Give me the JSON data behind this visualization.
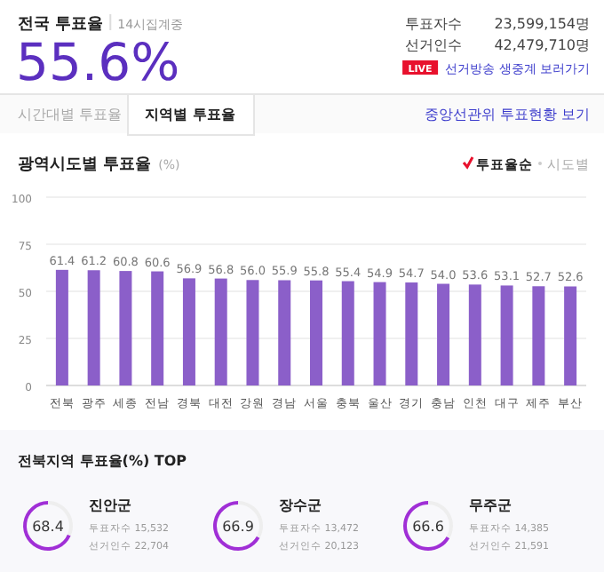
{
  "chart_data": [
    {
      "type": "other",
      "title": "전국 투표율",
      "subtitle": "14시집계중",
      "annotations": [
        "55.6%",
        "투표자수",
        "23,599,154명",
        "선거인수",
        "42,479,710명",
        "LIVE",
        "선거방송 생중계 보러가기",
        "시간대별 투표율",
        "지역별 투표율",
        "중앙선관위 투표현황 보기"
      ]
    },
    {
      "type": "bar",
      "title": "광역시도별 투표율",
      "subtitle": "(%)",
      "annotations": [
        "투표율순",
        "시도별"
      ],
      "categories": [
        "전북",
        "광주",
        "세종",
        "전남",
        "경북",
        "대전",
        "강원",
        "경남",
        "서울",
        "충북",
        "울산",
        "경기",
        "충남",
        "인천",
        "대구",
        "제주",
        "부산"
      ],
      "values": [
        61.4,
        61.2,
        60.8,
        60.6,
        56.9,
        56.8,
        56.0,
        55.9,
        55.8,
        55.4,
        54.9,
        54.7,
        54.0,
        53.6,
        53.1,
        52.7,
        52.6
      ],
      "color": "#8b5fc9",
      "ylim": [
        0,
        100
      ],
      "yticks": [
        0,
        25,
        50,
        75,
        100
      ],
      "grid": "y",
      "value_labels": [
        "61.4",
        "61.2",
        "60.8",
        "60.6",
        "56.9",
        "56.8",
        "56.0",
        "55.9",
        "55.8",
        "55.4",
        "54.9",
        "54.7",
        "54.0",
        "53.6",
        "53.1",
        "52.7",
        "52.6"
      ]
    },
    {
      "type": "other",
      "title": "전북지역 투표율(%) TOP"
    },
    {
      "type": "donut",
      "title": "진안군",
      "annotations": [
        "투표자수 15,532",
        "선거인수 22,704"
      ],
      "categories": [
        null,
        null
      ],
      "values": [
        68.4,
        31.6
      ],
      "colors": [
        "#a02fd6",
        "#eeeeee"
      ],
      "value_labels": [
        "68.4",
        null
      ]
    },
    {
      "type": "donut",
      "title": "장수군",
      "annotations": [
        "투표자수 13,472",
        "선거인수 20,123"
      ],
      "categories": [
        null,
        null
      ],
      "values": [
        66.9,
        33.1
      ],
      "colors": [
        "#a02fd6",
        "#eeeeee"
      ],
      "value_labels": [
        "66.9",
        null
      ]
    },
    {
      "type": "donut",
      "title": "무주군",
      "annotations": [
        "투표자수 14,385",
        "선거인수 21,591"
      ],
      "categories": [
        null,
        null
      ],
      "values": [
        66.6,
        33.4
      ],
      "colors": [
        "#a02fd6",
        "#eeeeee"
      ],
      "value_labels": [
        "66.6",
        null
      ]
    }
  ]
}
